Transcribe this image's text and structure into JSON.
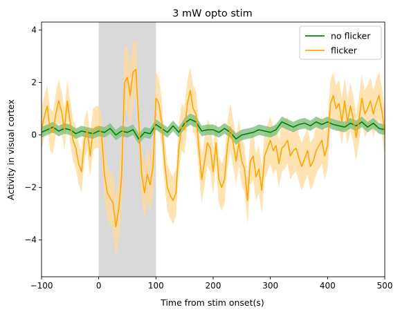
{
  "chart_data": {
    "type": "line",
    "title": "3 mW opto stim",
    "xlabel": "Time from stim onset(s)",
    "ylabel": "Activity in visual cortex",
    "xlim": [
      -100,
      500
    ],
    "ylim": [
      -5.4,
      4.3
    ],
    "xticks": [
      -100,
      0,
      100,
      200,
      300,
      400,
      500
    ],
    "yticks": [
      -4,
      -2,
      0,
      2,
      4
    ],
    "grid": false,
    "legend_position": "top-right",
    "shaded_region": {
      "x_start": 0,
      "x_end": 100,
      "color": "#d9d9d9"
    },
    "series": [
      {
        "name": "no flicker",
        "color": "#008000",
        "band_color": "#7fbf7f",
        "x": [
          -100,
          -90,
          -80,
          -70,
          -60,
          -50,
          -40,
          -30,
          -20,
          -10,
          0,
          10,
          20,
          30,
          40,
          50,
          60,
          70,
          80,
          90,
          100,
          110,
          120,
          130,
          140,
          150,
          160,
          170,
          180,
          190,
          200,
          210,
          220,
          230,
          240,
          250,
          260,
          270,
          280,
          290,
          300,
          310,
          320,
          330,
          340,
          350,
          360,
          370,
          380,
          390,
          400,
          410,
          420,
          430,
          440,
          450,
          460,
          470,
          480,
          490,
          500
        ],
        "y": [
          0.1,
          0.2,
          0.3,
          0.15,
          0.25,
          0.2,
          0.05,
          0.15,
          0.1,
          0.05,
          0.15,
          0.1,
          0.25,
          0.0,
          0.15,
          0.1,
          0.2,
          -0.15,
          0.1,
          0.05,
          0.4,
          0.25,
          0.1,
          0.35,
          0.1,
          0.45,
          0.6,
          0.5,
          0.15,
          0.2,
          0.2,
          0.1,
          0.25,
          0.1,
          -0.15,
          0.0,
          0.05,
          0.1,
          0.2,
          0.15,
          0.1,
          0.2,
          0.5,
          0.4,
          0.3,
          0.4,
          0.45,
          0.35,
          0.5,
          0.4,
          0.5,
          0.4,
          0.35,
          0.3,
          0.45,
          0.35,
          0.5,
          0.3,
          0.45,
          0.25,
          0.2
        ],
        "band": [
          0.2,
          0.2,
          0.2,
          0.2,
          0.2,
          0.2,
          0.2,
          0.2,
          0.2,
          0.2,
          0.2,
          0.2,
          0.2,
          0.2,
          0.2,
          0.2,
          0.2,
          0.2,
          0.2,
          0.2,
          0.2,
          0.2,
          0.2,
          0.2,
          0.2,
          0.2,
          0.22,
          0.22,
          0.2,
          0.2,
          0.2,
          0.2,
          0.2,
          0.2,
          0.22,
          0.2,
          0.2,
          0.2,
          0.2,
          0.2,
          0.2,
          0.2,
          0.2,
          0.2,
          0.2,
          0.2,
          0.2,
          0.2,
          0.2,
          0.2,
          0.2,
          0.2,
          0.2,
          0.2,
          0.2,
          0.2,
          0.2,
          0.2,
          0.2,
          0.2,
          0.2
        ]
      },
      {
        "name": "flicker",
        "color": "#ffa500",
        "band_color": "#ffd999",
        "x": [
          -100,
          -95,
          -90,
          -85,
          -80,
          -75,
          -70,
          -65,
          -60,
          -55,
          -50,
          -45,
          -40,
          -35,
          -30,
          -25,
          -20,
          -15,
          -10,
          -5,
          0,
          5,
          10,
          15,
          20,
          25,
          30,
          35,
          40,
          45,
          50,
          55,
          60,
          65,
          70,
          75,
          80,
          85,
          90,
          95,
          100,
          105,
          110,
          115,
          120,
          125,
          130,
          135,
          140,
          145,
          150,
          155,
          160,
          165,
          170,
          175,
          180,
          185,
          190,
          195,
          200,
          205,
          210,
          215,
          220,
          225,
          230,
          235,
          240,
          245,
          250,
          255,
          260,
          265,
          270,
          275,
          280,
          285,
          290,
          295,
          300,
          305,
          310,
          315,
          320,
          325,
          330,
          335,
          340,
          345,
          350,
          355,
          360,
          365,
          370,
          375,
          380,
          385,
          390,
          395,
          400,
          405,
          410,
          415,
          420,
          425,
          430,
          435,
          440,
          445,
          450,
          455,
          460,
          465,
          470,
          475,
          480,
          485,
          490,
          495,
          500
        ],
        "y": [
          0.2,
          0.7,
          1.1,
          0.2,
          0.1,
          0.8,
          1.3,
          0.9,
          0.2,
          1.3,
          0.5,
          -0.2,
          -0.5,
          -1.1,
          -1.4,
          -0.2,
          0.2,
          -0.8,
          0.2,
          0.3,
          0.3,
          0.0,
          -1.5,
          -2.2,
          -2.4,
          -2.6,
          -3.5,
          -2.8,
          -1.6,
          2.0,
          2.2,
          1.5,
          2.4,
          2.5,
          0.5,
          -1.5,
          -2.2,
          -1.5,
          -1.9,
          -1.2,
          1.4,
          1.2,
          0.5,
          -1.0,
          -2.0,
          -2.3,
          -2.5,
          -2.2,
          -0.5,
          0.3,
          0.2,
          1.2,
          1.7,
          1.0,
          0.8,
          -0.5,
          -1.7,
          -1.0,
          -0.3,
          -0.5,
          -1.4,
          -0.3,
          -1.7,
          -2.0,
          -1.7,
          -0.4,
          0.3,
          -0.3,
          -1.0,
          -0.3,
          -1.0,
          -1.3,
          -2.5,
          -1.0,
          -0.8,
          -1.6,
          -1.3,
          -2.1,
          -0.8,
          -0.5,
          -0.2,
          -0.6,
          -0.4,
          -1.1,
          -0.5,
          -0.4,
          -0.2,
          -0.8,
          -0.6,
          -0.5,
          -0.9,
          -1.2,
          -0.9,
          -0.6,
          -1.2,
          -1.0,
          -0.6,
          -0.4,
          -0.2,
          -0.8,
          -0.4,
          1.2,
          1.5,
          1.0,
          1.2,
          0.5,
          1.3,
          0.5,
          1.1,
          0.6,
          -0.1,
          0.6,
          1.4,
          0.8,
          1.0,
          1.3,
          0.8,
          1.2,
          1.5,
          0.9,
          0.1
        ],
        "band": [
          0.8,
          0.8,
          0.8,
          0.8,
          0.8,
          0.8,
          0.8,
          0.8,
          0.8,
          0.8,
          0.8,
          0.8,
          0.8,
          0.8,
          0.8,
          0.8,
          0.8,
          0.8,
          0.8,
          0.8,
          0.8,
          0.8,
          0.9,
          1.0,
          1.0,
          1.1,
          1.2,
          1.2,
          1.3,
          1.3,
          1.2,
          1.2,
          1.1,
          1.1,
          1.0,
          1.0,
          1.0,
          1.0,
          1.0,
          1.0,
          1.0,
          1.0,
          0.9,
          0.9,
          0.9,
          0.9,
          0.9,
          0.9,
          0.9,
          0.9,
          0.9,
          0.9,
          0.9,
          0.9,
          0.9,
          0.9,
          0.9,
          0.9,
          0.9,
          0.9,
          0.9,
          0.9,
          0.9,
          0.9,
          0.9,
          0.9,
          0.9,
          0.9,
          0.9,
          0.9,
          0.9,
          0.9,
          0.9,
          0.9,
          0.9,
          0.9,
          0.9,
          0.9,
          0.9,
          0.9,
          0.9,
          0.9,
          0.9,
          0.9,
          0.9,
          0.9,
          0.9,
          0.9,
          0.9,
          0.9,
          0.9,
          0.9,
          0.9,
          0.9,
          0.9,
          0.9,
          0.9,
          0.9,
          0.9,
          0.9,
          0.9,
          0.9,
          0.9,
          0.9,
          0.9,
          0.9,
          0.9,
          0.9,
          0.9,
          0.9,
          0.9,
          0.9,
          0.9,
          0.9,
          0.9,
          0.9,
          0.9,
          0.9,
          0.9,
          0.9,
          0.9
        ]
      }
    ]
  }
}
